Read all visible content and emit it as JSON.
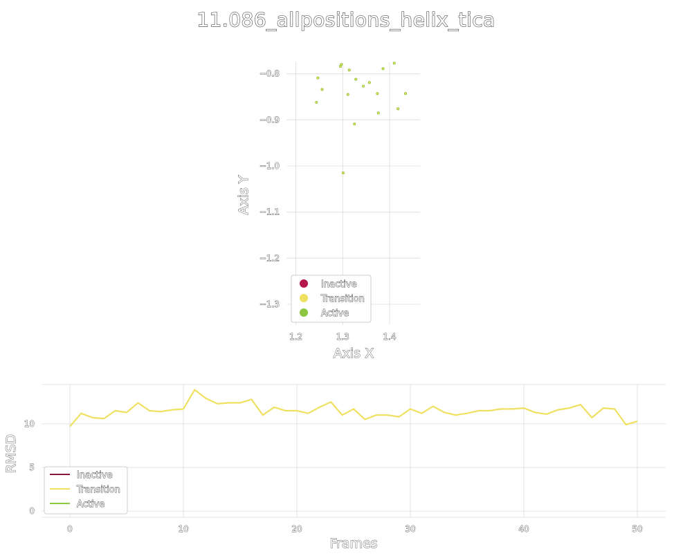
{
  "title": "11.086_allpositions_helix_tica",
  "chart_data": [
    {
      "type": "scatter",
      "xlabel": "Axis X",
      "ylabel": "Axis Y",
      "xlim": [
        1.18,
        1.465
      ],
      "ylim": [
        -1.345,
        -0.775
      ],
      "xticks": [
        1.2,
        1.3,
        1.4
      ],
      "xtick_labels": [
        "1.2",
        "1.3",
        "1.4"
      ],
      "yticks": [
        -0.8,
        -0.9,
        -1.0,
        -1.1,
        -1.2,
        -1.3
      ],
      "ytick_labels": [
        "−0.8",
        "−0.9",
        "−1.0",
        "−1.1",
        "−1.2",
        "−1.3"
      ],
      "grid": true,
      "legend_position": "lower-left",
      "legend": [
        {
          "label": "Inactive",
          "color": "#b5174b"
        },
        {
          "label": "Transition",
          "color": "#f0e060"
        },
        {
          "label": "Active",
          "color": "#8dc63f"
        }
      ],
      "points": [
        {
          "x": 1.247,
          "y": -0.809
        },
        {
          "x": 1.256,
          "y": -0.834
        },
        {
          "x": 1.244,
          "y": -0.862
        },
        {
          "x": 1.295,
          "y": -0.784
        },
        {
          "x": 1.297,
          "y": -0.78
        },
        {
          "x": 1.314,
          "y": -0.792
        },
        {
          "x": 1.311,
          "y": -0.845
        },
        {
          "x": 1.328,
          "y": -0.812
        },
        {
          "x": 1.325,
          "y": -0.909
        },
        {
          "x": 1.344,
          "y": -0.827
        },
        {
          "x": 1.357,
          "y": -0.819
        },
        {
          "x": 1.374,
          "y": -0.843
        },
        {
          "x": 1.376,
          "y": -0.885
        },
        {
          "x": 1.386,
          "y": -0.789
        },
        {
          "x": 1.41,
          "y": -0.777
        },
        {
          "x": 1.418,
          "y": -0.876
        },
        {
          "x": 1.434,
          "y": -0.843
        },
        {
          "x": 1.301,
          "y": -1.015
        }
      ]
    },
    {
      "type": "line",
      "xlabel": "Frames",
      "ylabel": "RMSD",
      "xlim": [
        -2.5,
        52.5
      ],
      "ylim": [
        -0.7,
        14.5
      ],
      "xticks": [
        0,
        10,
        20,
        30,
        40,
        50
      ],
      "xtick_labels": [
        "0",
        "10",
        "20",
        "30",
        "40",
        "50"
      ],
      "yticks": [
        0,
        5,
        10
      ],
      "ytick_labels": [
        "0",
        "5",
        "10"
      ],
      "grid": true,
      "legend_position": "lower-left",
      "legend": [
        {
          "label": "Inactive",
          "color": "#8b1538"
        },
        {
          "label": "Transition",
          "color": "#f0e060"
        },
        {
          "label": "Active",
          "color": "#8dc63f"
        }
      ],
      "series": [
        {
          "name": "Transition",
          "color": "#f0e060",
          "x": [
            0,
            1,
            2,
            3,
            4,
            5,
            6,
            7,
            8,
            9,
            10,
            11,
            12,
            13,
            14,
            15,
            16,
            17,
            18,
            19,
            20,
            21,
            22,
            23,
            24,
            25,
            26,
            27,
            28,
            29,
            30,
            31,
            32,
            33,
            34,
            35,
            36,
            37,
            38,
            39,
            40,
            41,
            42,
            43,
            44,
            45,
            46,
            47,
            48,
            49,
            50
          ],
          "values": [
            9.7,
            11.2,
            10.7,
            10.6,
            11.5,
            11.3,
            12.4,
            11.5,
            11.4,
            11.6,
            11.7,
            13.9,
            12.9,
            12.3,
            12.4,
            12.4,
            12.8,
            11.0,
            11.9,
            11.5,
            11.5,
            11.2,
            11.9,
            12.5,
            11.0,
            11.7,
            10.5,
            11.0,
            11.0,
            10.8,
            11.7,
            11.2,
            12.0,
            11.3,
            11.0,
            11.2,
            11.5,
            11.5,
            11.7,
            11.7,
            11.8,
            11.3,
            11.1,
            11.6,
            11.8,
            12.2,
            10.7,
            11.8,
            11.7,
            9.9,
            10.3
          ]
        }
      ]
    }
  ]
}
